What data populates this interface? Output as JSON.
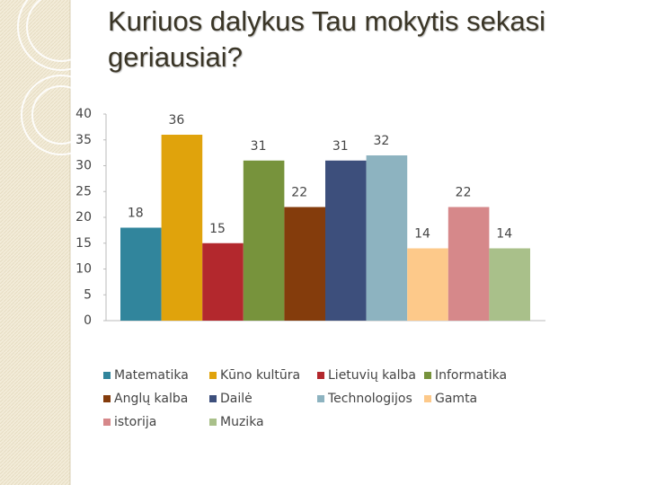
{
  "chart_data": {
    "type": "bar",
    "title": "Kuriuos  dalykus  Tau mokytis sekasi geriausiai?",
    "categories": [
      null
    ],
    "series": [
      {
        "name": "Matematika",
        "color": "#31859c",
        "values": [
          18
        ]
      },
      {
        "name": "Kūno kultūra",
        "color": "#e0a30c",
        "values": [
          36
        ]
      },
      {
        "name": "Lietuvių kalba",
        "color": "#b3282d",
        "values": [
          15
        ]
      },
      {
        "name": "Informatika",
        "color": "#77933c",
        "values": [
          31
        ]
      },
      {
        "name": "Anglų kalba",
        "color": "#843c0c",
        "values": [
          22
        ]
      },
      {
        "name": "Dailė",
        "color": "#3d4f7c",
        "values": [
          31
        ]
      },
      {
        "name": "Technologijos",
        "color": "#8db3c0",
        "values": [
          32
        ]
      },
      {
        "name": "Gamta",
        "color": "#fdc98a",
        "values": [
          14
        ]
      },
      {
        "name": "istorija",
        "color": "#d6888a",
        "values": [
          22
        ]
      },
      {
        "name": "Muzika",
        "color": "#a9c08a",
        "values": [
          14
        ]
      }
    ],
    "ylim": [
      0,
      40
    ],
    "yticks": [
      0,
      5,
      10,
      15,
      20,
      25,
      30,
      35,
      40
    ],
    "grid": false,
    "legend": "bottom"
  }
}
